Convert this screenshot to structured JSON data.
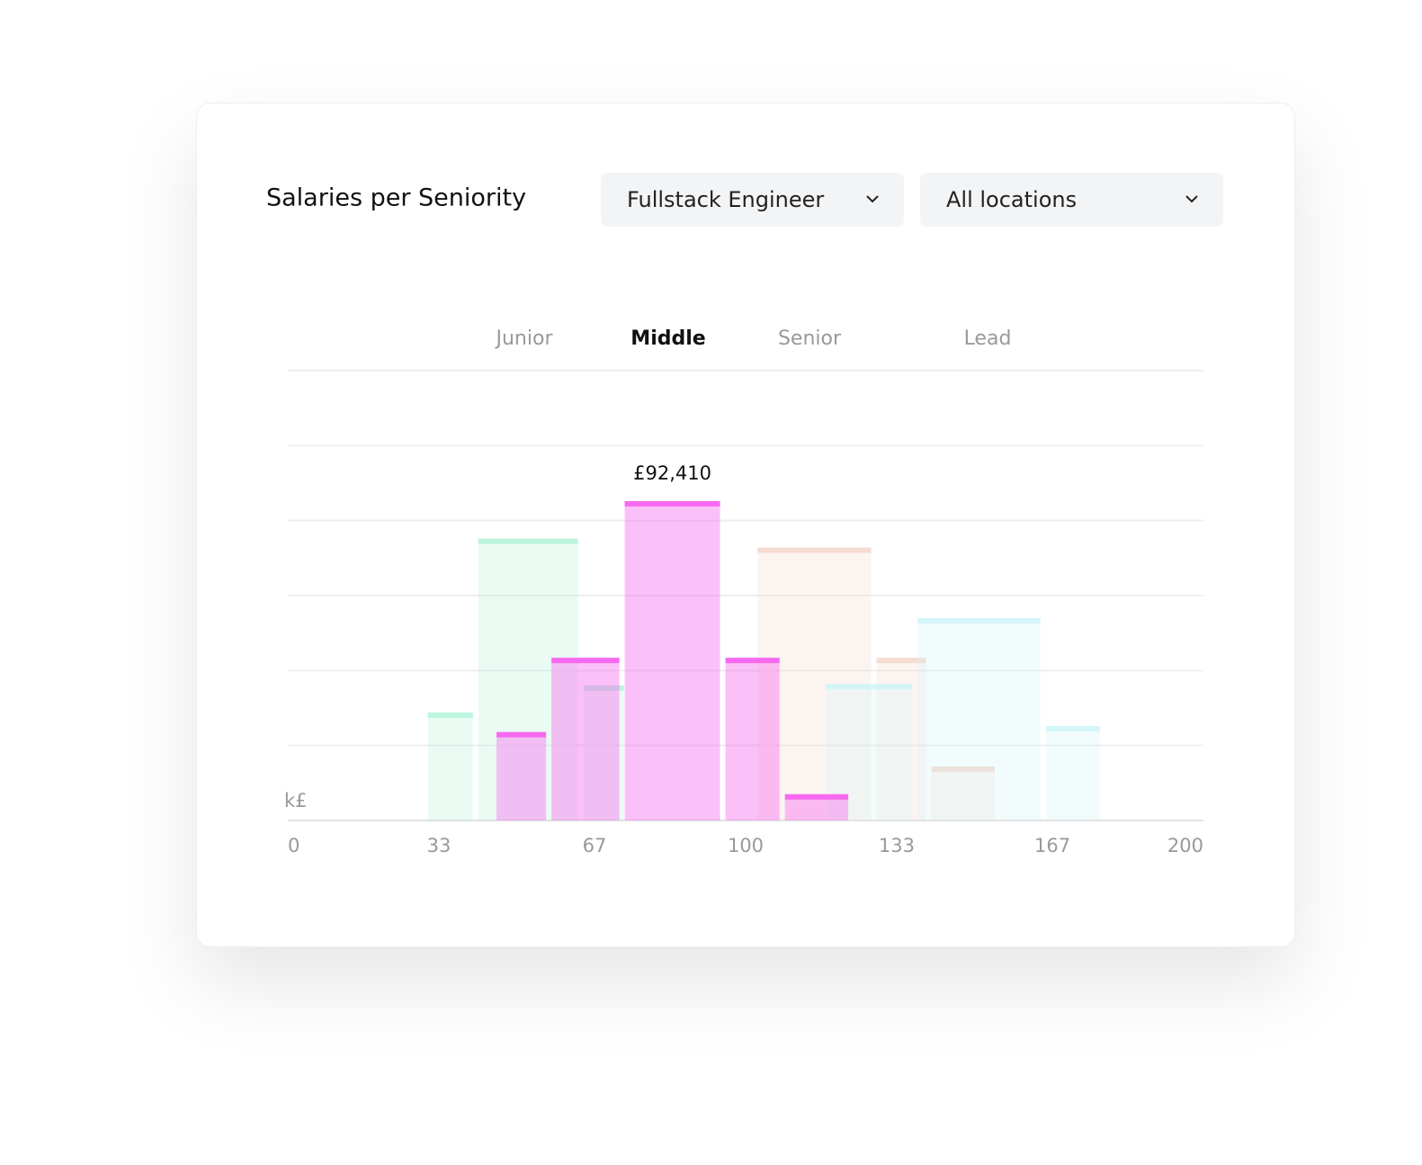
{
  "card": {
    "title": "Salaries per Seniority",
    "filters": [
      "Fullstack Engineer",
      "All locations"
    ]
  },
  "chart_data": {
    "type": "histogram",
    "annotation": "£92,410",
    "y_unit": "k£",
    "xlim": [
      0,
      200
    ],
    "xticks": [
      0,
      33,
      67,
      100,
      133,
      167,
      200
    ],
    "ylim": [
      0,
      6
    ],
    "yticks": [
      0,
      1,
      2,
      3,
      4,
      5,
      6
    ],
    "show_ytick_labels": false,
    "grid": true,
    "active_series": 1,
    "series": [
      {
        "name": "Junior",
        "color": "#b5f2d9",
        "bins": [
          30,
          41,
          64,
          74
        ],
        "values": [
          1.44,
          3.76,
          1.8
        ]
      },
      {
        "name": "Middle",
        "color": "#f76af0",
        "bins": [
          45,
          57,
          73,
          95,
          108,
          123
        ],
        "values": [
          1.18,
          2.17,
          4.26,
          2.17,
          0.35
        ]
      },
      {
        "name": "Senior",
        "color": "#f4d6cb",
        "bins": [
          102,
          128,
          140,
          155
        ],
        "values": [
          3.64,
          2.17,
          0.72
        ]
      },
      {
        "name": "Lead",
        "color": "#cff5f8",
        "bins": [
          117,
          137,
          165,
          178
        ],
        "values": [
          1.82,
          2.7,
          1.26
        ]
      }
    ]
  }
}
